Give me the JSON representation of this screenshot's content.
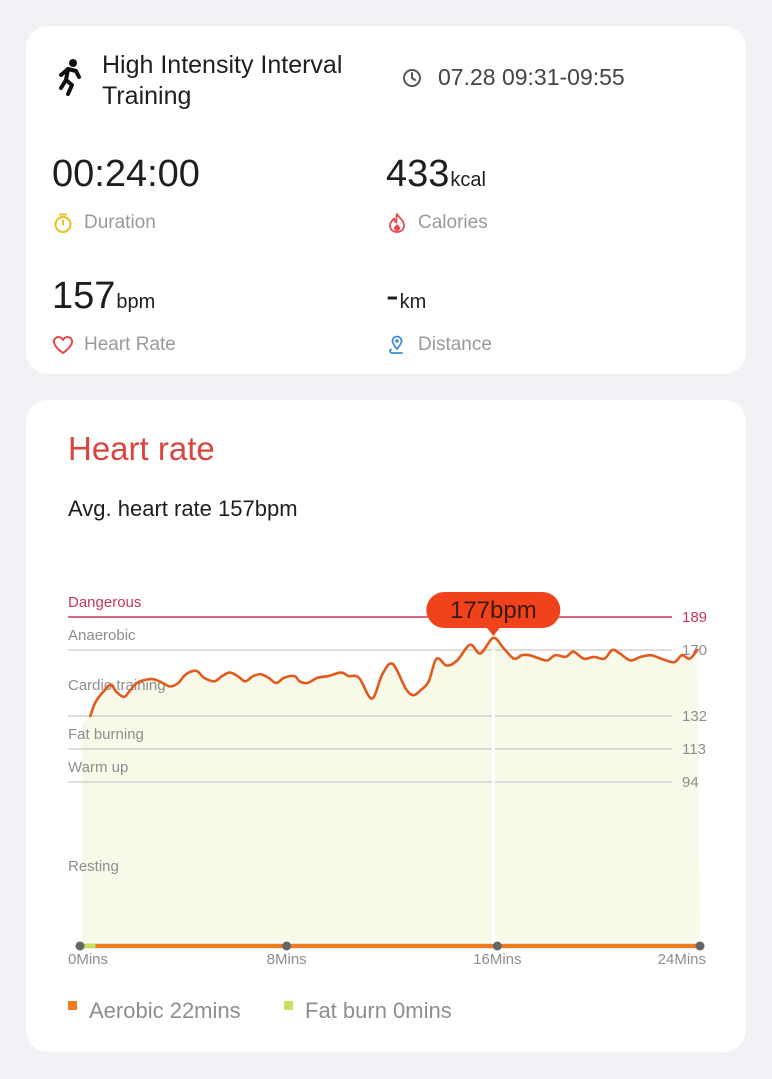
{
  "workout": {
    "type": "High Intensity Interval Training",
    "time_range": "07.28 09:31-09:55"
  },
  "metrics": {
    "duration": {
      "value": "00:24:00",
      "unit": "",
      "label": "Duration"
    },
    "calories": {
      "value": "433",
      "unit": "kcal",
      "label": "Calories"
    },
    "heart_rate": {
      "value": "157",
      "unit": "bpm",
      "label": "Heart Rate"
    },
    "distance": {
      "value": "-",
      "unit": "km",
      "label": "Distance"
    }
  },
  "heart_rate_card": {
    "title": "Heart rate",
    "avg_text": "Avg. heart rate 157bpm"
  },
  "legend": {
    "aerobic": "Aerobic 22mins",
    "fat_burn": "Fat burn 0mins"
  },
  "colors": {
    "accent_red": "#d9463f",
    "line": "#e25a1c",
    "marker": "#f0431b",
    "dangerous": "#c8365d",
    "aerobic": "#ef7d1f",
    "fat_burn": "#cbe05c",
    "fill": "#f8f9e9"
  },
  "chart_data": {
    "type": "line",
    "title": "",
    "xlabel": "",
    "ylabel": "",
    "x_unit": "minutes",
    "x_ticks": [
      "0Mins",
      "8Mins",
      "16Mins",
      "24Mins"
    ],
    "xlim": [
      0,
      24
    ],
    "zones": [
      {
        "name": "Dangerous",
        "threshold": 189
      },
      {
        "name": "Anaerobic",
        "threshold": 170
      },
      {
        "name": "Cardio training",
        "threshold": 151
      },
      {
        "name": "Fat burning",
        "threshold": 132
      },
      {
        "name": "Warm up",
        "threshold": 113
      },
      {
        "name": "Resting",
        "threshold": 94
      }
    ],
    "y_tick_labels": [
      "189",
      "170",
      "132",
      "113",
      "94"
    ],
    "peak": {
      "x": 16,
      "y": 177,
      "label": "177bpm"
    },
    "series": [
      {
        "name": "",
        "x": [
          0.4,
          0.6,
          0.9,
          1.2,
          1.4,
          1.7,
          1.9,
          2.2,
          2.6,
          2.9,
          3.2,
          3.5,
          3.8,
          4.1,
          4.5,
          4.8,
          5.2,
          5.5,
          5.8,
          6.1,
          6.4,
          6.7,
          7.0,
          7.3,
          7.6,
          7.9,
          8.3,
          8.5,
          8.8,
          9.2,
          9.6,
          10.1,
          10.4,
          10.8,
          11.3,
          11.7,
          12.1,
          12.6,
          12.9,
          13.2,
          13.5,
          13.8,
          14.2,
          14.6,
          15.1,
          15.5,
          16.0,
          16.4,
          16.8,
          17.1,
          17.4,
          17.8,
          18.1,
          18.4,
          18.8,
          19.1,
          19.5,
          19.9,
          20.3,
          20.6,
          20.9,
          21.3,
          21.7,
          22.1,
          22.5,
          23.0,
          23.3,
          23.6,
          23.9
        ],
        "y": [
          132,
          140,
          146,
          150,
          146,
          143,
          146,
          151,
          153,
          153,
          151,
          149,
          151,
          156,
          158,
          154,
          152,
          155,
          157,
          155,
          152,
          155,
          156,
          154,
          151,
          154,
          155,
          152,
          151,
          154,
          155,
          157,
          155,
          154,
          142,
          156,
          162,
          148,
          144,
          147,
          152,
          165,
          161,
          164,
          173,
          168,
          177,
          171,
          165,
          167,
          167,
          165,
          164,
          167,
          166,
          169,
          165,
          166,
          165,
          170,
          168,
          164,
          166,
          167,
          165,
          163,
          167,
          165,
          170
        ]
      }
    ]
  }
}
